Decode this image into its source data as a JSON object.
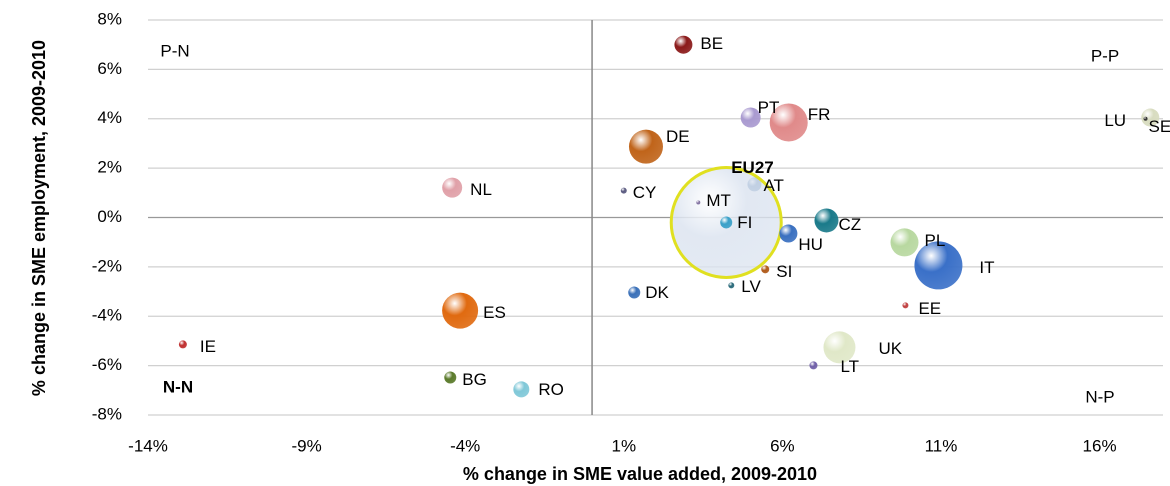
{
  "chart_data": {
    "type": "bubble",
    "xlabel": "% change in SME value added, 2009-2010",
    "ylabel": "% change in SME employment, 2009-2010",
    "labels": [
      "BE",
      "PT",
      "FR",
      "DE",
      "LU",
      "SE",
      "NL",
      "CY",
      "AT",
      "EU27",
      "MT",
      "FI",
      "CZ",
      "HU",
      "PL",
      "IT",
      "SI",
      "LV",
      "DK",
      "EE",
      "ES",
      "UK",
      "LT",
      "IE",
      "BG",
      "RO"
    ],
    "x": [
      2.88,
      5.0,
      6.2,
      1.7,
      17.6,
      17.45,
      -4.41,
      1.0,
      5.12,
      4.23,
      3.35,
      4.23,
      7.39,
      6.19,
      9.85,
      10.92,
      5.46,
      4.39,
      1.33,
      9.88,
      -4.16,
      7.8,
      6.98,
      -12.9,
      -4.47,
      -2.23
    ],
    "y": [
      7.0,
      4.05,
      3.85,
      2.87,
      4.05,
      4.0,
      1.21,
      1.09,
      1.34,
      -0.2,
      0.61,
      -0.2,
      -0.12,
      -0.65,
      -1.01,
      -1.94,
      -2.1,
      -2.75,
      -3.04,
      -3.56,
      -3.77,
      -5.26,
      -5.99,
      -5.14,
      -6.48,
      -6.96
    ],
    "sizes": [
      81,
      100,
      361,
      289,
      81,
      4,
      100,
      9,
      49,
      3025,
      4,
      36,
      144,
      81,
      196,
      576,
      16,
      9,
      36,
      9,
      324,
      256,
      16,
      16,
      36,
      64
    ],
    "colors": [
      "#8b1a1a",
      "#a99ad0",
      "#e08a8a",
      "#c0641a",
      "#d8dcc0",
      "#333333",
      "#e0a0a8",
      "#5a5a80",
      "#3a6aa0",
      "#dce4f0",
      "#8070a0",
      "#3aa0c8",
      "#1a7a8a",
      "#3a70c0",
      "#b8d8a0",
      "#3a70c8",
      "#b05a1a",
      "#2a6a7a",
      "#3a70b8",
      "#c04040",
      "#e06a10",
      "#e0e8c8",
      "#7060a8",
      "#c03030",
      "#5a7a2a",
      "#80c8d8"
    ],
    "highlight": "EU27",
    "highlight_color": "#e0e020",
    "xlim": [
      -14,
      18
    ],
    "ylim": [
      -8,
      8
    ],
    "xticks": [
      {
        "value": -14,
        "label": "-14%"
      },
      {
        "value": -9,
        "label": "-9%"
      },
      {
        "value": -4,
        "label": "-4%"
      },
      {
        "value": 1,
        "label": "1%"
      },
      {
        "value": 6,
        "label": "6%"
      },
      {
        "value": 11,
        "label": "11%"
      },
      {
        "value": 16,
        "label": "16%"
      }
    ],
    "yticks": [
      {
        "value": -8,
        "label": "-8%"
      },
      {
        "value": -6,
        "label": "-6%"
      },
      {
        "value": -4,
        "label": "-4%"
      },
      {
        "value": -2,
        "label": "-2%"
      },
      {
        "value": 0,
        "label": "0%"
      },
      {
        "value": 2,
        "label": "2%"
      },
      {
        "value": 4,
        "label": "4%"
      },
      {
        "value": 6,
        "label": "6%"
      },
      {
        "value": 8,
        "label": "8%"
      }
    ],
    "grid": true,
    "quadrants": [
      "P-N",
      "P-P",
      "N-N",
      "N-P"
    ]
  }
}
